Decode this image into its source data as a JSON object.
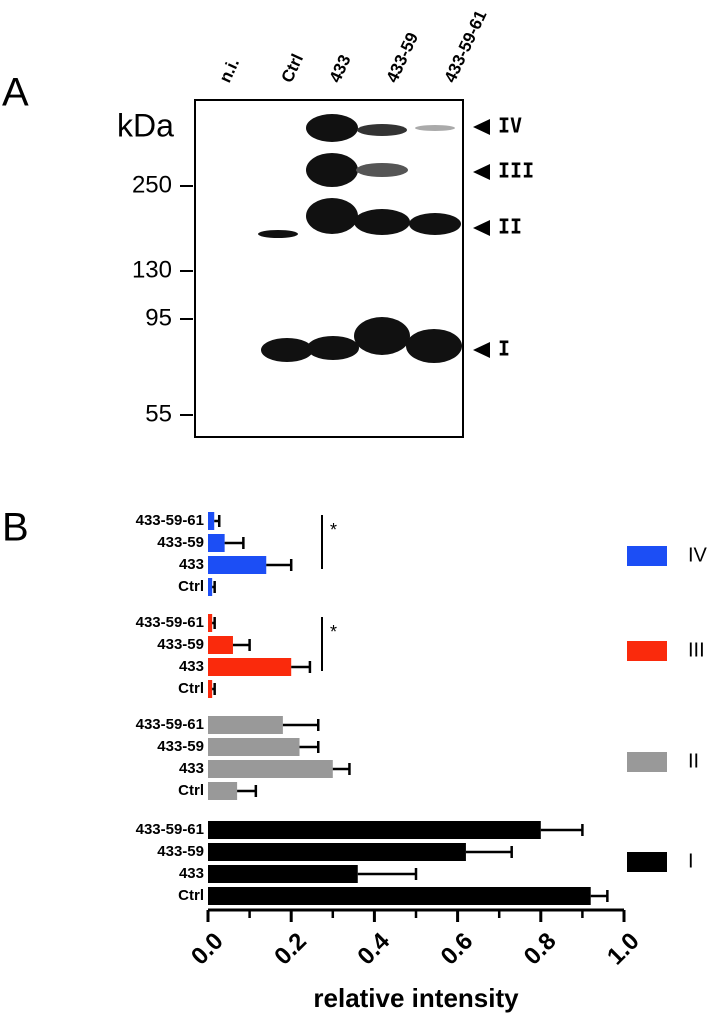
{
  "panel_a": {
    "label": "A",
    "unit": "kDa",
    "lanes": [
      "n.i.",
      "Ctrl",
      "433",
      "433-59",
      "433-59-61"
    ],
    "markers": [
      250,
      130,
      95,
      55
    ],
    "bands": [
      "IV",
      "III",
      "II",
      "I"
    ]
  },
  "chart_data": {
    "type": "bar",
    "panel": "B",
    "orientation": "horizontal",
    "categories": [
      "433-59-61",
      "433-59",
      "433",
      "Ctrl"
    ],
    "series": [
      {
        "name": "IV",
        "color": "#1c4ef5",
        "values": [
          0.015,
          0.04,
          0.14,
          0.01
        ],
        "errors": [
          0.012,
          0.045,
          0.06,
          0.006
        ],
        "significance": "*"
      },
      {
        "name": "III",
        "color": "#fa2a0c",
        "values": [
          0.01,
          0.06,
          0.2,
          0.01
        ],
        "errors": [
          0.006,
          0.04,
          0.045,
          0.006
        ],
        "significance": "*"
      },
      {
        "name": "II",
        "color": "#999999",
        "values": [
          0.18,
          0.22,
          0.3,
          0.07
        ],
        "errors": [
          0.085,
          0.045,
          0.04,
          0.045
        ]
      },
      {
        "name": "I",
        "color": "#000000",
        "values": [
          0.8,
          0.62,
          0.36,
          0.92
        ],
        "errors": [
          0.1,
          0.11,
          0.14,
          0.04
        ]
      }
    ],
    "xlabel": "relative intensity",
    "xlim": [
      0,
      1
    ],
    "xticks": [
      {
        "value": 0,
        "label": "0.0"
      },
      {
        "value": 0.2,
        "label": "0.2"
      },
      {
        "value": 0.4,
        "label": "0.4"
      },
      {
        "value": 0.6,
        "label": "0.6"
      },
      {
        "value": 0.8,
        "label": "0.8"
      },
      {
        "value": 1,
        "label": "1.0"
      }
    ],
    "xminorticks": [
      0.1,
      0.3,
      0.5,
      0.7,
      0.9
    ]
  }
}
